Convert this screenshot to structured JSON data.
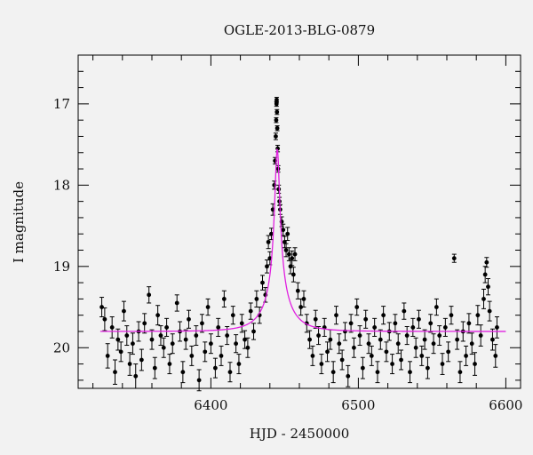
{
  "chart_data": {
    "type": "scatter",
    "title": "OGLE-2013-BLG-0879",
    "xlabel": "HJD - 2450000",
    "ylabel": "I magnitude",
    "xlim": [
      6310,
      6610
    ],
    "ylim": [
      20.5,
      16.4
    ],
    "y_inverted": true,
    "grid": false,
    "x_major_ticks": [
      6400,
      6500,
      6600
    ],
    "x_minor_step": 20,
    "y_major_ticks": [
      17,
      18,
      19,
      20
    ],
    "y_minor_step": 0.2,
    "colors": {
      "points": "#000000",
      "model": "#e020e0",
      "background": "#f2f2f2"
    },
    "model": {
      "name": "",
      "t0": 6445,
      "baseline_mag": 19.8,
      "peak_mag": 17.55,
      "x_range": [
        6325,
        6600
      ]
    },
    "series": [
      {
        "name": "",
        "points": [
          [
            6326,
            19.5,
            0.12
          ],
          [
            6328,
            19.65,
            0.14
          ],
          [
            6330,
            20.1,
            0.15
          ],
          [
            6333,
            19.75,
            0.13
          ],
          [
            6335,
            20.3,
            0.15
          ],
          [
            6337,
            19.9,
            0.13
          ],
          [
            6339,
            20.05,
            0.12
          ],
          [
            6341,
            19.55,
            0.12
          ],
          [
            6343,
            19.85,
            0.12
          ],
          [
            6345,
            20.2,
            0.14
          ],
          [
            6347,
            19.95,
            0.13
          ],
          [
            6349,
            20.35,
            0.15
          ],
          [
            6351,
            19.8,
            0.12
          ],
          [
            6353,
            20.15,
            0.13
          ],
          [
            6355,
            19.7,
            0.12
          ],
          [
            6358,
            19.35,
            0.1
          ],
          [
            6360,
            19.9,
            0.12
          ],
          [
            6362,
            20.25,
            0.13
          ],
          [
            6364,
            19.6,
            0.12
          ],
          [
            6366,
            19.85,
            0.12
          ],
          [
            6368,
            20.0,
            0.12
          ],
          [
            6370,
            19.75,
            0.11
          ],
          [
            6372,
            20.2,
            0.12
          ],
          [
            6374,
            19.95,
            0.12
          ],
          [
            6377,
            19.45,
            0.1
          ],
          [
            6379,
            19.8,
            0.12
          ],
          [
            6381,
            20.3,
            0.13
          ],
          [
            6383,
            19.9,
            0.12
          ],
          [
            6385,
            19.65,
            0.11
          ],
          [
            6387,
            20.1,
            0.12
          ],
          [
            6390,
            19.85,
            0.12
          ],
          [
            6392,
            20.4,
            0.13
          ],
          [
            6394,
            19.7,
            0.11
          ],
          [
            6396,
            20.05,
            0.12
          ],
          [
            6398,
            19.5,
            0.1
          ],
          [
            6400,
            19.95,
            0.12
          ],
          [
            6403,
            20.25,
            0.12
          ],
          [
            6405,
            19.75,
            0.11
          ],
          [
            6407,
            20.1,
            0.12
          ],
          [
            6409,
            19.4,
            0.1
          ],
          [
            6411,
            19.85,
            0.11
          ],
          [
            6413,
            20.3,
            0.12
          ],
          [
            6415,
            19.6,
            0.11
          ],
          [
            6417,
            19.95,
            0.11
          ],
          [
            6419,
            20.2,
            0.12
          ],
          [
            6421,
            19.7,
            0.11
          ],
          [
            6423,
            19.9,
            0.11
          ],
          [
            6425,
            20.0,
            0.12
          ],
          [
            6427,
            19.55,
            0.1
          ],
          [
            6429,
            19.8,
            0.1
          ],
          [
            6431,
            19.4,
            0.1
          ],
          [
            6433,
            19.6,
            0.1
          ],
          [
            6435,
            19.2,
            0.09
          ],
          [
            6437,
            19.35,
            0.09
          ],
          [
            6438,
            19.0,
            0.08
          ],
          [
            6439,
            18.7,
            0.08
          ],
          [
            6440,
            18.9,
            0.08
          ],
          [
            6441,
            18.6,
            0.07
          ],
          [
            6442,
            18.3,
            0.07
          ],
          [
            6443,
            18.0,
            0.05
          ],
          [
            6443.5,
            17.7,
            0.04
          ],
          [
            6444,
            17.4,
            0.04
          ],
          [
            6444.3,
            17.2,
            0.03
          ],
          [
            6444.5,
            17.0,
            0.03
          ],
          [
            6444.6,
            16.95,
            0.03
          ],
          [
            6444.8,
            17.1,
            0.03
          ],
          [
            6445,
            17.3,
            0.03
          ],
          [
            6445.3,
            17.55,
            0.04
          ],
          [
            6445.6,
            17.8,
            0.04
          ],
          [
            6446,
            18.05,
            0.05
          ],
          [
            6446.5,
            18.2,
            0.05
          ],
          [
            6447,
            18.3,
            0.06
          ],
          [
            6448,
            18.45,
            0.06
          ],
          [
            6449,
            18.55,
            0.07
          ],
          [
            6450,
            18.7,
            0.07
          ],
          [
            6451,
            18.8,
            0.08
          ],
          [
            6452,
            18.6,
            0.08
          ],
          [
            6453,
            18.85,
            0.08
          ],
          [
            6454,
            19.0,
            0.09
          ],
          [
            6455,
            18.9,
            0.09
          ],
          [
            6456,
            19.1,
            0.09
          ],
          [
            6457,
            18.85,
            0.08
          ],
          [
            6459,
            19.3,
            0.1
          ],
          [
            6461,
            19.5,
            0.1
          ],
          [
            6463,
            19.4,
            0.1
          ],
          [
            6465,
            19.7,
            0.11
          ],
          [
            6467,
            19.9,
            0.11
          ],
          [
            6469,
            20.1,
            0.12
          ],
          [
            6471,
            19.65,
            0.11
          ],
          [
            6473,
            19.85,
            0.11
          ],
          [
            6475,
            20.2,
            0.12
          ],
          [
            6477,
            19.75,
            0.11
          ],
          [
            6479,
            20.05,
            0.12
          ],
          [
            6481,
            19.9,
            0.12
          ],
          [
            6483,
            20.3,
            0.13
          ],
          [
            6485,
            19.6,
            0.11
          ],
          [
            6487,
            19.95,
            0.12
          ],
          [
            6489,
            20.15,
            0.12
          ],
          [
            6491,
            19.8,
            0.11
          ],
          [
            6493,
            20.35,
            0.13
          ],
          [
            6495,
            19.7,
            0.11
          ],
          [
            6497,
            20.0,
            0.12
          ],
          [
            6499,
            19.5,
            0.1
          ],
          [
            6501,
            19.85,
            0.12
          ],
          [
            6503,
            20.25,
            0.13
          ],
          [
            6505,
            19.65,
            0.11
          ],
          [
            6507,
            19.95,
            0.12
          ],
          [
            6509,
            20.1,
            0.12
          ],
          [
            6511,
            19.75,
            0.11
          ],
          [
            6513,
            20.3,
            0.13
          ],
          [
            6515,
            19.9,
            0.12
          ],
          [
            6517,
            19.6,
            0.11
          ],
          [
            6519,
            20.05,
            0.12
          ],
          [
            6521,
            19.8,
            0.11
          ],
          [
            6523,
            20.2,
            0.12
          ],
          [
            6525,
            19.7,
            0.11
          ],
          [
            6527,
            19.95,
            0.12
          ],
          [
            6529,
            20.15,
            0.12
          ],
          [
            6531,
            19.55,
            0.1
          ],
          [
            6533,
            19.85,
            0.11
          ],
          [
            6535,
            20.3,
            0.13
          ],
          [
            6537,
            19.75,
            0.11
          ],
          [
            6539,
            20.0,
            0.12
          ],
          [
            6541,
            19.65,
            0.11
          ],
          [
            6543,
            20.1,
            0.12
          ],
          [
            6545,
            19.9,
            0.12
          ],
          [
            6547,
            20.25,
            0.13
          ],
          [
            6549,
            19.7,
            0.11
          ],
          [
            6551,
            19.95,
            0.12
          ],
          [
            6553,
            19.5,
            0.1
          ],
          [
            6555,
            19.85,
            0.12
          ],
          [
            6557,
            20.2,
            0.13
          ],
          [
            6559,
            19.75,
            0.11
          ],
          [
            6561,
            20.05,
            0.12
          ],
          [
            6563,
            19.6,
            0.11
          ],
          [
            6565,
            18.9,
            0.05
          ],
          [
            6567,
            19.9,
            0.12
          ],
          [
            6569,
            20.3,
            0.13
          ],
          [
            6571,
            19.8,
            0.12
          ],
          [
            6573,
            20.1,
            0.12
          ],
          [
            6575,
            19.7,
            0.12
          ],
          [
            6577,
            19.95,
            0.13
          ],
          [
            6579,
            20.2,
            0.14
          ],
          [
            6581,
            19.6,
            0.12
          ],
          [
            6583,
            19.85,
            0.13
          ],
          [
            6585,
            19.4,
            0.12
          ],
          [
            6586,
            19.1,
            0.1
          ],
          [
            6587,
            18.95,
            0.06
          ],
          [
            6588,
            19.25,
            0.1
          ],
          [
            6589,
            19.55,
            0.12
          ],
          [
            6591,
            19.9,
            0.13
          ],
          [
            6593,
            20.1,
            0.14
          ],
          [
            6594,
            19.75,
            0.13
          ]
        ]
      }
    ]
  }
}
